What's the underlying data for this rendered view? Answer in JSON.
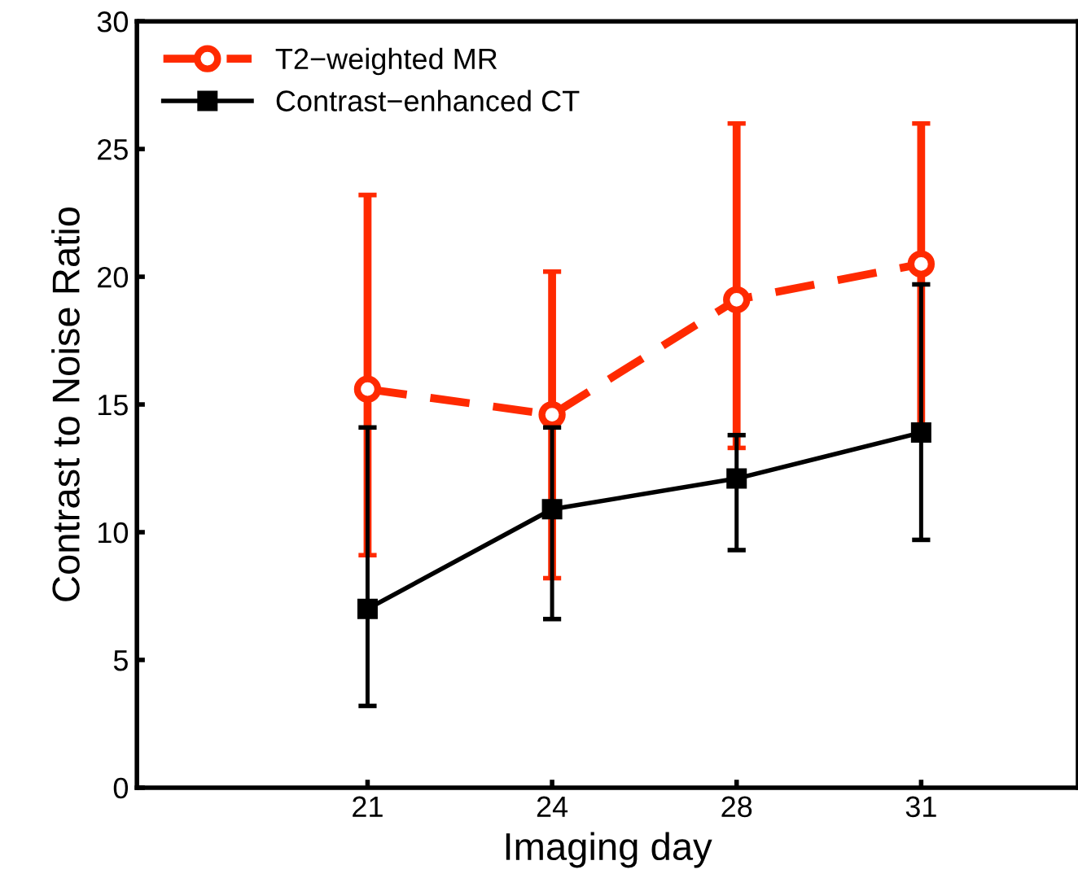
{
  "chart_data": {
    "type": "line",
    "xlabel": "Imaging day",
    "ylabel": "Contrast to Noise Ratio",
    "categories": [
      "21",
      "24",
      "28",
      "31"
    ],
    "series": [
      {
        "name": "T2−weighted MR",
        "color": "#ff2a00",
        "marker": "circle",
        "line_style": "dashed",
        "values": [
          15.6,
          14.6,
          19.1,
          20.5
        ],
        "errors": [
          [
            9.1,
            23.2
          ],
          [
            8.2,
            20.2
          ],
          [
            13.3,
            26.0
          ],
          [
            14.2,
            26.0
          ]
        ]
      },
      {
        "name": "Contrast−enhanced CT",
        "color": "#000000",
        "marker": "square",
        "line_style": "solid",
        "values": [
          7.0,
          10.9,
          12.1,
          13.9
        ],
        "errors": [
          [
            3.2,
            14.1
          ],
          [
            6.6,
            14.1
          ],
          [
            9.3,
            13.8
          ],
          [
            9.7,
            19.7
          ]
        ]
      }
    ],
    "ylim": [
      0,
      30
    ],
    "yticks": [
      0,
      5,
      10,
      15,
      20,
      25,
      30
    ],
    "grid": false,
    "legend": "top left"
  }
}
